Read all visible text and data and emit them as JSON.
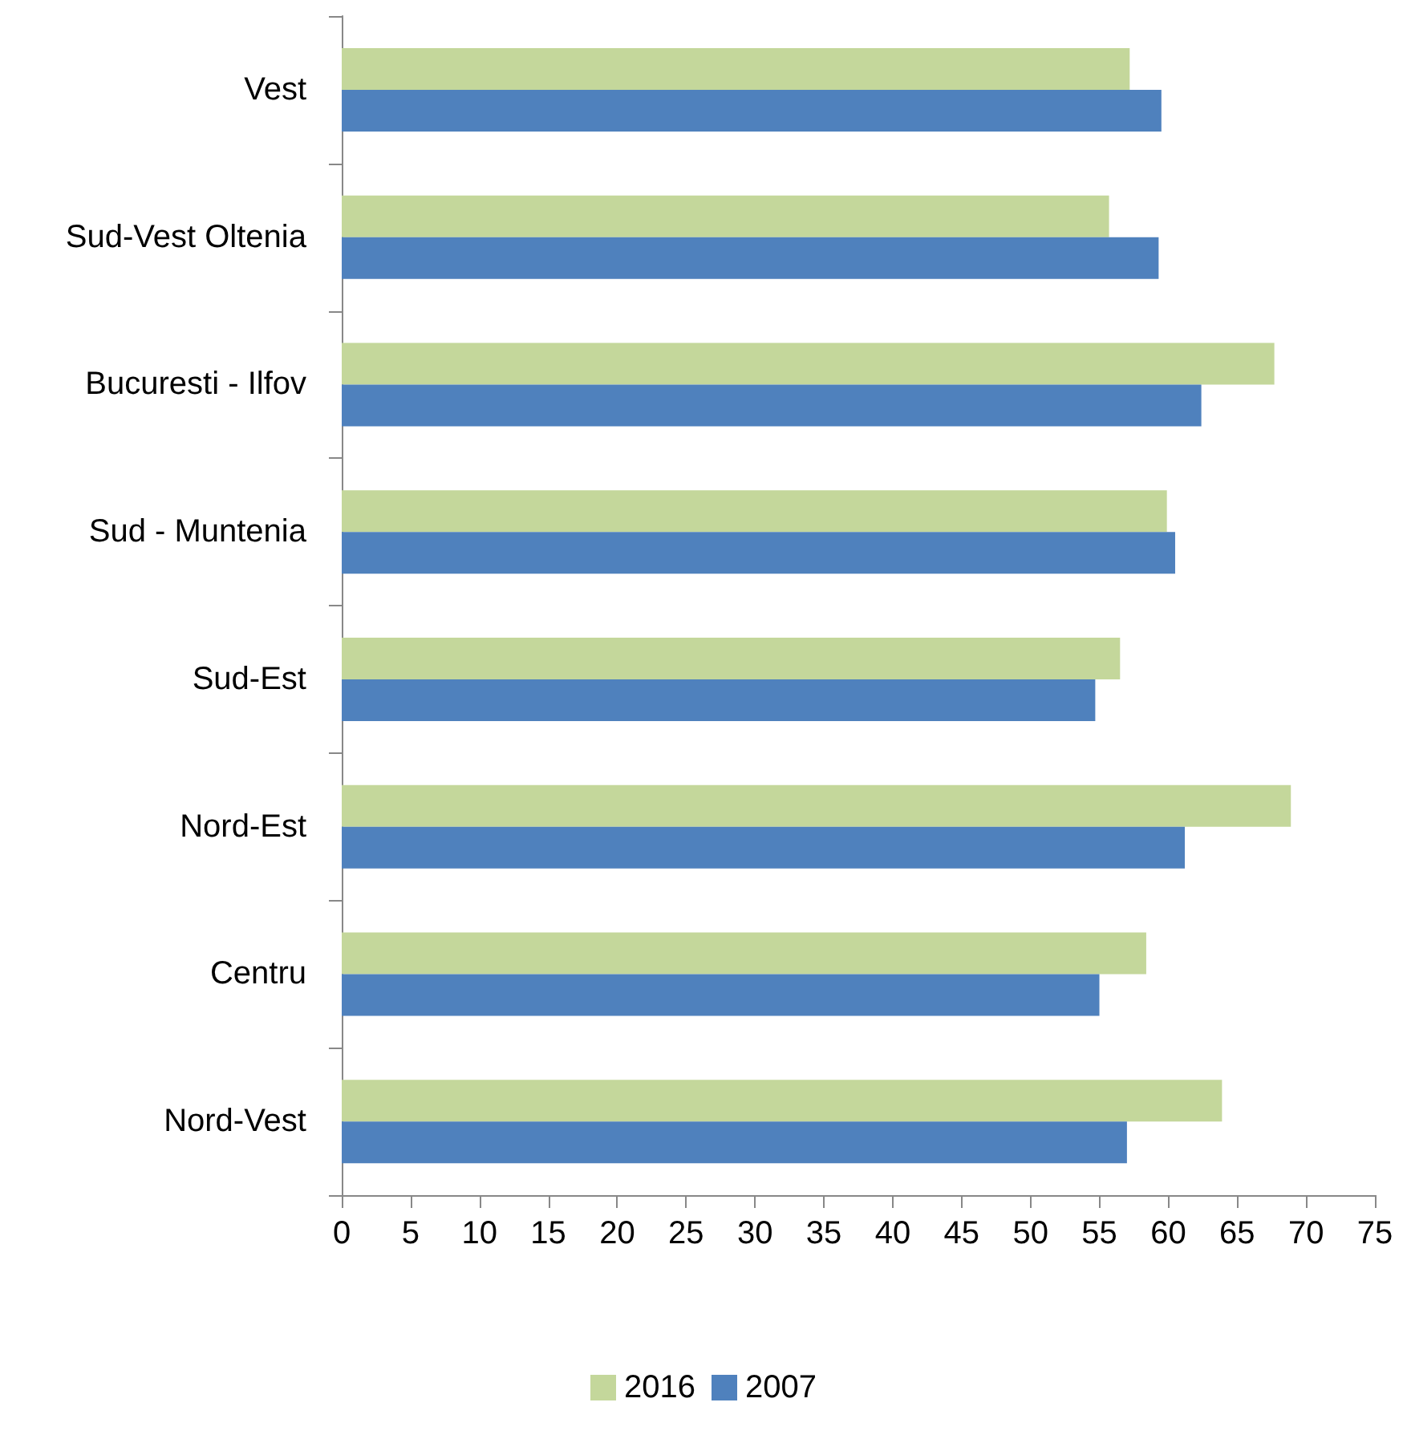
{
  "chart_data": {
    "type": "bar",
    "orientation": "horizontal",
    "categories": [
      "Vest",
      "Sud-Vest Oltenia",
      "Bucuresti - Ilfov",
      "Sud - Muntenia",
      "Sud-Est",
      "Nord-Est",
      "Centru",
      "Nord-Vest"
    ],
    "series": [
      {
        "name": "2016",
        "color": "#c4d79b",
        "values": [
          57.2,
          55.7,
          67.7,
          59.9,
          56.5,
          68.9,
          58.4,
          63.9
        ]
      },
      {
        "name": "2007",
        "color": "#4f81bd",
        "values": [
          59.5,
          59.3,
          62.4,
          60.5,
          54.7,
          61.2,
          55.0,
          57.0
        ]
      }
    ],
    "xlim": [
      0,
      75
    ],
    "xticks": [
      0,
      5,
      10,
      15,
      20,
      25,
      30,
      35,
      40,
      45,
      50,
      55,
      60,
      65,
      70,
      75
    ],
    "grid": false,
    "legend": "bottom"
  }
}
